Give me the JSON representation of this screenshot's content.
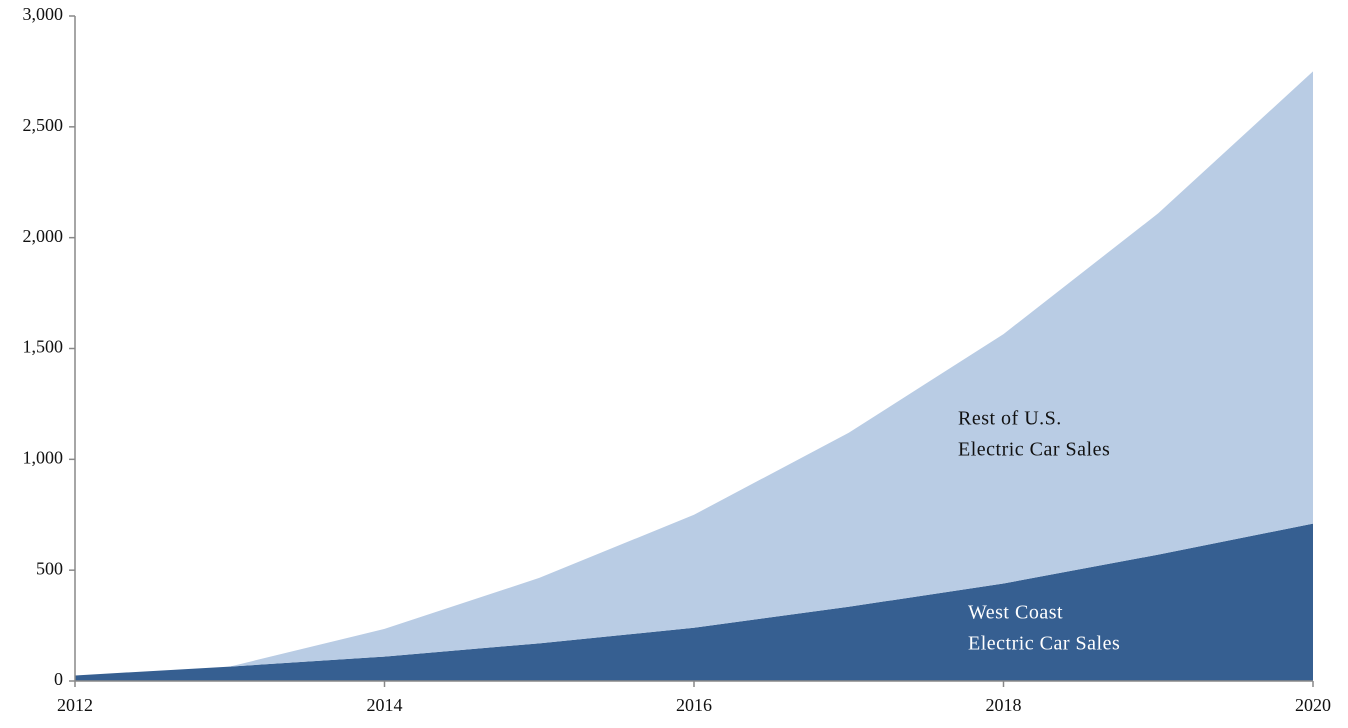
{
  "chart_data": {
    "type": "stacked_area",
    "x": [
      2012,
      2013,
      2014,
      2015,
      2016,
      2017,
      2018,
      2019,
      2020
    ],
    "series": [
      {
        "name": "West Coast Electric Car Sales",
        "color": "#365f91",
        "values": [
          25,
          65,
          110,
          170,
          240,
          335,
          440,
          570,
          710
        ]
      },
      {
        "name": "Rest of U.S. Electric Car Sales",
        "color": "#b9cce4",
        "values": [
          0,
          0,
          125,
          295,
          510,
          785,
          1125,
          1540,
          2040
        ]
      }
    ],
    "annotations": [
      [
        "Rest of U.S.",
        "Electric Car Sales"
      ],
      [
        "West Coast",
        "Electric Car Sales"
      ]
    ],
    "xlim": [
      2012,
      2020
    ],
    "xticks": [
      2012,
      2014,
      2016,
      2018,
      2020
    ],
    "ylim": [
      0,
      3000
    ],
    "yticks": [
      0,
      500,
      {
        "value": 1000,
        "label": "1,000"
      },
      {
        "value": 1500,
        "label": "1,500"
      },
      {
        "value": 2000,
        "label": "2,000"
      },
      {
        "value": 2500,
        "label": "2,500"
      },
      {
        "value": 3000,
        "label": "3,000"
      }
    ],
    "grid": false
  }
}
